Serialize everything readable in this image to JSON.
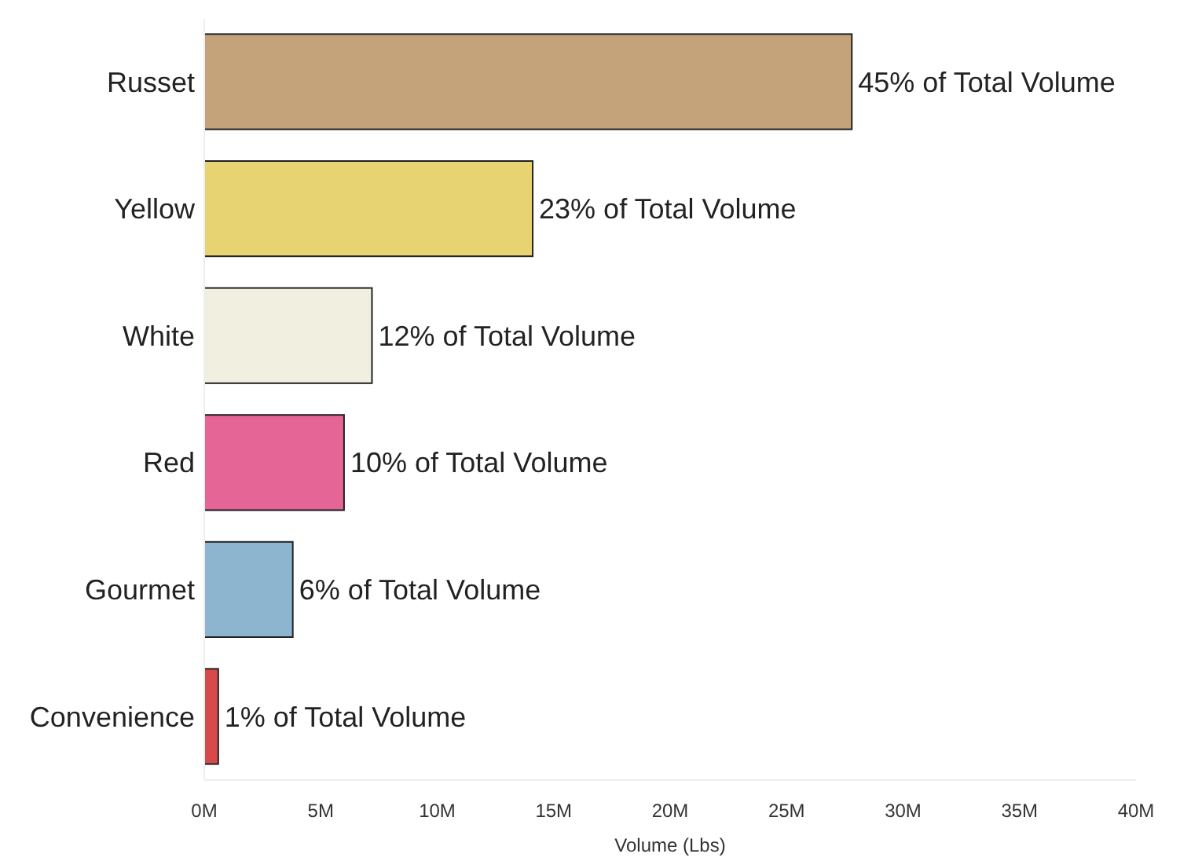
{
  "chart_data": {
    "type": "bar",
    "orientation": "horizontal",
    "xlabel": "Volume (Lbs)",
    "categories": [
      "Russet",
      "Yellow",
      "White",
      "Red",
      "Gourmet",
      "Convenience"
    ],
    "values": [
      27.8,
      14.1,
      7.2,
      6.0,
      3.8,
      0.6
    ],
    "colors": [
      "#c4a37a",
      "#e8d372",
      "#f1efe0",
      "#e66597",
      "#8db5cf",
      "#d84a49"
    ],
    "annotations": [
      {
        "text": "45% of Total Volume",
        "x": 27.8,
        "y": "Russet"
      },
      {
        "text": "23% of Total Volume",
        "x": 14.1,
        "y": "Yellow"
      },
      {
        "text": "12% of Total Volume",
        "x": 7.2,
        "y": "White"
      },
      {
        "text": "10% of Total Volume",
        "x": 6.0,
        "y": "Red"
      },
      {
        "text": "6% of Total Volume",
        "x": 3.8,
        "y": "Gourmet"
      },
      {
        "text": "1% of Total Volume",
        "x": 0.6,
        "y": "Convenience"
      }
    ],
    "xlim": [
      0,
      40
    ],
    "xticks": [
      {
        "value": 0,
        "label": "0M"
      },
      {
        "value": 5,
        "label": "5M"
      },
      {
        "value": 10,
        "label": "10M"
      },
      {
        "value": 15,
        "label": "15M"
      },
      {
        "value": 20,
        "label": "20M"
      },
      {
        "value": 25,
        "label": "25M"
      },
      {
        "value": 30,
        "label": "30M"
      },
      {
        "value": 35,
        "label": "35M"
      },
      {
        "value": 40,
        "label": "40M"
      }
    ],
    "grid": false
  }
}
